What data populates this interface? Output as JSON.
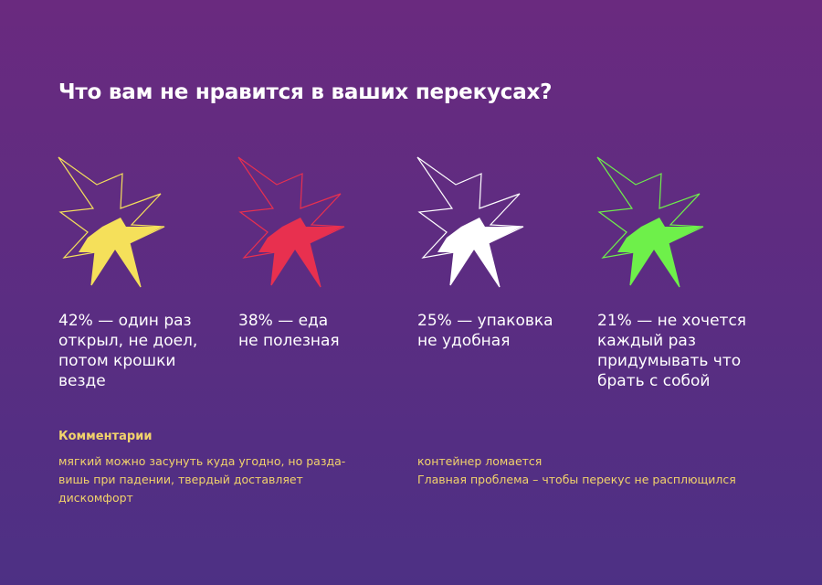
{
  "title": "Что вам не нравится в ваших перекусах?",
  "cards": [
    {
      "text": "42% — один раз\nоткрыл, не доел,\nпотом крошки\nвезде",
      "color": "#f5e05a",
      "icon": "burst-icon"
    },
    {
      "text": "38% — еда\nне полезная",
      "color": "#e8304f",
      "icon": "burst-icon"
    },
    {
      "text": "25% — упаковка\nне удобная",
      "color": "#ffffff",
      "icon": "burst-icon"
    },
    {
      "text": "21% — не хочется\nкаждый раз\nпридумывать что\nбрать с собой",
      "color": "#6ef04a",
      "icon": "burst-icon"
    }
  ],
  "comments": {
    "title": "Комментарии",
    "left": "мягкий можно засунуть куда угодно, но разда-\nвишь при падении, твердый доставляет\nдискомфорт",
    "right": "контейнер ломается\nГлавная проблема – чтобы перекус не расплющился"
  }
}
